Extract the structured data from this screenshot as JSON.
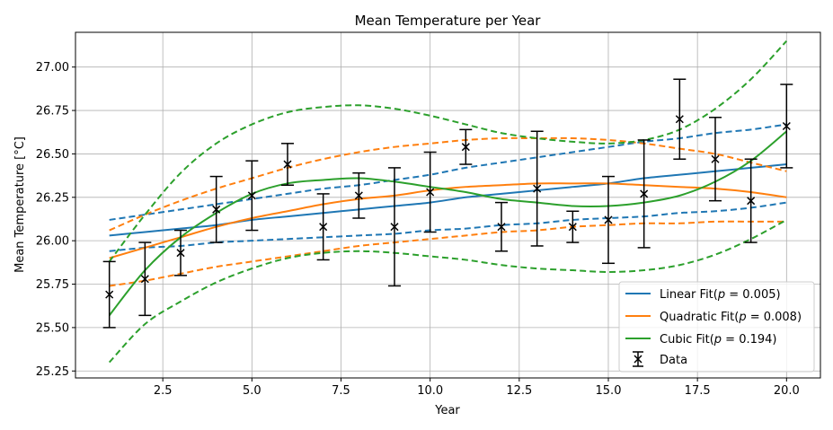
{
  "chart_data": {
    "type": "line",
    "title": "Mean Temperature per Year",
    "xlabel": "Year",
    "ylabel": "Mean Temperature [°C]",
    "xlim": [
      0.05,
      20.95
    ],
    "ylim": [
      25.21,
      27.2
    ],
    "xticks": [
      2.5,
      5.0,
      7.5,
      10.0,
      12.5,
      15.0,
      17.5,
      20.0
    ],
    "xtick_labels": [
      "2.5",
      "5.0",
      "7.5",
      "10.0",
      "12.5",
      "15.0",
      "17.5",
      "20.0"
    ],
    "yticks": [
      25.25,
      25.5,
      25.75,
      26.0,
      26.25,
      26.5,
      26.75,
      27.0
    ],
    "ytick_labels": [
      "25.25",
      "25.50",
      "25.75",
      "26.00",
      "26.25",
      "26.50",
      "26.75",
      "27.00"
    ],
    "grid": true,
    "legend_position": "lower-right",
    "data_series": {
      "name": "Data",
      "color": "#000000",
      "marker": "x",
      "x": [
        1,
        2,
        3,
        4,
        5,
        6,
        7,
        8,
        9,
        10,
        11,
        12,
        13,
        14,
        15,
        16,
        17,
        18,
        19,
        20
      ],
      "y": [
        25.69,
        25.78,
        25.93,
        26.18,
        26.26,
        26.44,
        26.08,
        26.26,
        26.08,
        26.28,
        26.54,
        26.08,
        26.3,
        26.08,
        26.12,
        26.27,
        26.7,
        26.47,
        26.23,
        26.66
      ],
      "yerr": [
        0.19,
        0.21,
        0.13,
        0.19,
        0.2,
        0.12,
        0.19,
        0.13,
        0.34,
        0.23,
        0.1,
        0.14,
        0.33,
        0.09,
        0.25,
        0.31,
        0.23,
        0.24,
        0.24,
        0.24
      ]
    },
    "fits": [
      {
        "name": "Linear Fit",
        "p_value": "0.005",
        "color": "#1f77b4",
        "x": [
          1,
          2,
          3,
          4,
          5,
          6,
          7,
          8,
          9,
          10,
          11,
          12,
          13,
          14,
          15,
          16,
          17,
          18,
          19,
          20
        ],
        "y": [
          26.03,
          26.05,
          26.07,
          26.09,
          26.12,
          26.14,
          26.16,
          26.18,
          26.2,
          26.22,
          26.25,
          26.27,
          26.29,
          26.31,
          26.33,
          26.36,
          26.38,
          26.4,
          26.42,
          26.44
        ],
        "upper": [
          26.12,
          26.15,
          26.18,
          26.21,
          26.24,
          26.27,
          26.3,
          26.32,
          26.35,
          26.38,
          26.42,
          26.45,
          26.48,
          26.51,
          26.54,
          26.57,
          26.59,
          26.62,
          26.64,
          26.67
        ],
        "lower": [
          25.94,
          25.96,
          25.97,
          25.99,
          26.0,
          26.01,
          26.02,
          26.03,
          26.04,
          26.06,
          26.07,
          26.09,
          26.1,
          26.12,
          26.13,
          26.14,
          26.16,
          26.17,
          26.19,
          26.22
        ]
      },
      {
        "name": "Quadratic Fit",
        "p_value": "0.008",
        "color": "#ff7f0e",
        "x": [
          1,
          2,
          3,
          4,
          5,
          6,
          7,
          8,
          9,
          10,
          11,
          12,
          13,
          14,
          15,
          16,
          17,
          18,
          19,
          20
        ],
        "y": [
          25.9,
          25.96,
          26.02,
          26.08,
          26.13,
          26.17,
          26.21,
          26.24,
          26.26,
          26.29,
          26.31,
          26.32,
          26.33,
          26.33,
          26.33,
          26.32,
          26.31,
          26.3,
          26.28,
          26.25
        ],
        "upper": [
          26.06,
          26.15,
          26.23,
          26.3,
          26.36,
          26.42,
          26.47,
          26.51,
          26.54,
          26.56,
          26.58,
          26.59,
          26.59,
          26.59,
          26.58,
          26.56,
          26.53,
          26.5,
          26.45,
          26.4
        ],
        "lower": [
          25.74,
          25.77,
          25.81,
          25.85,
          25.88,
          25.91,
          25.94,
          25.97,
          25.99,
          26.01,
          26.03,
          26.05,
          26.06,
          26.08,
          26.09,
          26.1,
          26.1,
          26.11,
          26.11,
          26.11
        ]
      },
      {
        "name": "Cubic Fit",
        "p_value": "0.194",
        "color": "#2ca02c",
        "x": [
          1,
          2,
          3,
          4,
          5,
          6,
          7,
          8,
          9,
          10,
          11,
          12,
          13,
          14,
          15,
          16,
          17,
          18,
          19,
          20
        ],
        "y": [
          25.57,
          25.83,
          26.02,
          26.16,
          26.27,
          26.33,
          26.35,
          26.36,
          26.34,
          26.31,
          26.28,
          26.24,
          26.22,
          26.2,
          26.2,
          26.22,
          26.26,
          26.34,
          26.46,
          26.63
        ],
        "upper": [
          25.88,
          26.15,
          26.39,
          26.56,
          26.67,
          26.74,
          26.77,
          26.78,
          26.76,
          26.72,
          26.67,
          26.62,
          26.59,
          26.57,
          26.56,
          26.58,
          26.64,
          26.76,
          26.93,
          27.15
        ],
        "lower": [
          25.3,
          25.52,
          25.65,
          25.76,
          25.84,
          25.9,
          25.93,
          25.94,
          25.93,
          25.91,
          25.89,
          25.86,
          25.84,
          25.83,
          25.82,
          25.83,
          25.86,
          25.92,
          26.01,
          26.12
        ]
      }
    ]
  }
}
